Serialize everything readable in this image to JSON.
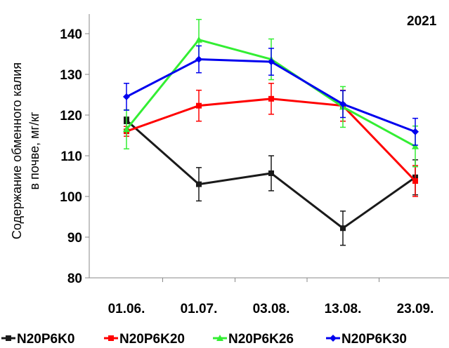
{
  "chart_data": {
    "type": "line",
    "annotation": "2021",
    "ylabel_line1": "Содержание обменного калия",
    "ylabel_line2": "в почве, мг/кг",
    "xlabel": "",
    "categories": [
      "01.06.",
      "01.07.",
      "03.08.",
      "13.08.",
      "23.09."
    ],
    "ylim": [
      80,
      145
    ],
    "yticks": [
      80,
      90,
      100,
      110,
      120,
      130,
      140
    ],
    "grid": false,
    "legend_position": "bottom",
    "series": [
      {
        "name": "N20P6K0",
        "color": "#1a1a1a",
        "marker": "square",
        "values": [
          118.7,
          103.0,
          105.7,
          92.2,
          104.7
        ],
        "errors": [
          0.8,
          4.1,
          4.3,
          4.2,
          4.3
        ]
      },
      {
        "name": "N20P6K20",
        "color": "#ff0000",
        "marker": "square",
        "values": [
          116.0,
          122.3,
          124.0,
          122.3,
          103.8
        ],
        "errors": [
          1.2,
          3.8,
          3.8,
          3.8,
          3.8
        ]
      },
      {
        "name": "N20P6K26",
        "color": "#33ee33",
        "marker": "triangle",
        "values": [
          116.5,
          138.5,
          133.7,
          122.0,
          112.3
        ],
        "errors": [
          4.8,
          5.0,
          5.0,
          5.0,
          5.0
        ]
      },
      {
        "name": "N20P6K30",
        "color": "#0000ee",
        "marker": "diamond",
        "values": [
          124.5,
          133.7,
          133.1,
          122.7,
          115.9
        ],
        "errors": [
          3.3,
          3.3,
          3.3,
          3.3,
          3.3
        ]
      }
    ]
  }
}
